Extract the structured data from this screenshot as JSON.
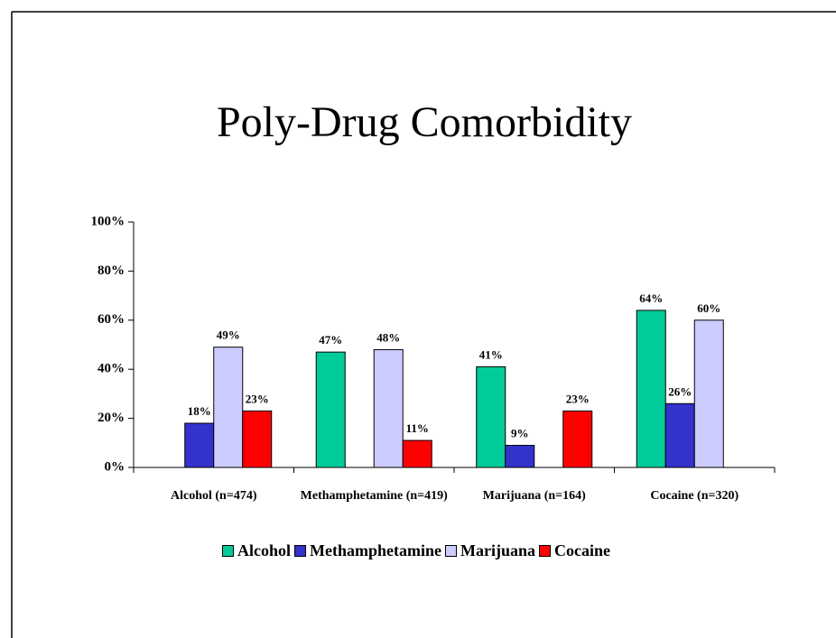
{
  "chart_data": {
    "type": "bar",
    "title": "Poly-Drug Comorbidity",
    "categories": [
      "Alcohol (n=474)",
      "Methamphetamine (n=419)",
      "Marijuana (n=164)",
      "Cocaine (n=320)"
    ],
    "series": [
      {
        "name": "Alcohol",
        "color": "#00cc99",
        "values": [
          null,
          47,
          41,
          64
        ],
        "value_labels": [
          null,
          "47%",
          "41%",
          "64%"
        ]
      },
      {
        "name": "Methamphetamine",
        "color": "#3333cc",
        "values": [
          18,
          null,
          9,
          26
        ],
        "value_labels": [
          "18%",
          null,
          "9%",
          "26%"
        ]
      },
      {
        "name": "Marijuana",
        "color": "#ccccff",
        "values": [
          49,
          48,
          null,
          60
        ],
        "value_labels": [
          "49%",
          "48%",
          null,
          "60%"
        ]
      },
      {
        "name": "Cocaine",
        "color": "#ff0000",
        "values": [
          23,
          11,
          23,
          null
        ],
        "value_labels": [
          "23%",
          "11%",
          "23%",
          null
        ]
      }
    ],
    "ylim": [
      0,
      100
    ],
    "yticks": [
      {
        "value": 0,
        "label": "0%"
      },
      {
        "value": 20,
        "label": "20%"
      },
      {
        "value": 40,
        "label": "40%"
      },
      {
        "value": 60,
        "label": "60%"
      },
      {
        "value": 80,
        "label": "80%"
      },
      {
        "value": 100,
        "label": "100%"
      }
    ],
    "legend": "bottom"
  }
}
